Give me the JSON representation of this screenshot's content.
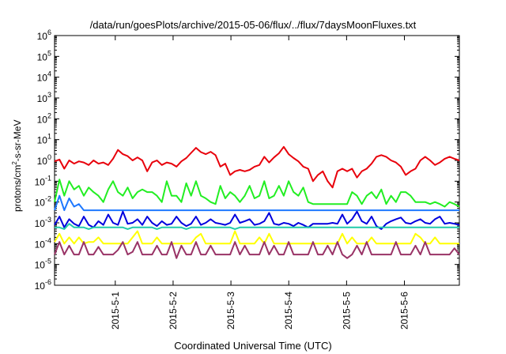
{
  "chart_data": {
    "type": "line",
    "title": "/data/run/goesPlots/archive/2015-05-06/flux/../flux/7daysMoonFluxes.txt",
    "xlabel": "Coordinated Universal Time (UTC)",
    "ylabel_base": "protons/cm",
    "ylabel_sup": "2",
    "ylabel_tail": "-s-sr-MeV",
    "yscale": "log",
    "ylim": [
      1e-06,
      1000000.0
    ],
    "ytick_exponents": [
      -6,
      -5,
      -4,
      -3,
      -2,
      -1,
      0,
      1,
      2,
      3,
      4,
      5,
      6
    ],
    "ytick_base": "10",
    "xlim": [
      -1.05,
      5.95
    ],
    "xticks": [
      {
        "x": 0,
        "label": "2015-5-1"
      },
      {
        "x": 1,
        "label": "2015-5-2"
      },
      {
        "x": 2,
        "label": "2015-5-3"
      },
      {
        "x": 3,
        "label": "2015-5-4"
      },
      {
        "x": 4,
        "label": "2015-5-5"
      },
      {
        "x": 5,
        "label": "2015-5-6"
      }
    ],
    "grid": false,
    "series": [
      {
        "color": "#e8000b",
        "n": 84,
        "values": [
          0.9,
          1.1,
          0.4,
          1.0,
          0.7,
          0.9,
          0.8,
          0.6,
          1.0,
          0.7,
          0.8,
          0.6,
          1.2,
          3.2,
          2.0,
          1.6,
          1.0,
          1.4,
          1.0,
          0.3,
          0.8,
          1.0,
          0.6,
          0.8,
          0.7,
          0.5,
          0.9,
          1.3,
          2.3,
          4.0,
          2.5,
          2.0,
          2.6,
          1.8,
          0.5,
          0.7,
          0.2,
          0.3,
          0.35,
          0.3,
          0.35,
          0.5,
          0.6,
          1.5,
          0.8,
          1.4,
          2.2,
          4.5,
          2.0,
          1.3,
          0.9,
          0.5,
          0.4,
          0.1,
          0.2,
          0.3,
          0.1,
          0.05,
          0.3,
          0.4,
          0.3,
          0.4,
          0.15,
          0.3,
          0.4,
          0.7,
          1.5,
          1.8,
          1.5,
          1.0,
          0.8,
          0.5,
          0.2,
          0.3,
          0.4,
          1.0,
          1.5,
          1.0,
          0.6,
          0.8,
          1.2,
          1.5,
          1.2,
          1.0
        ]
      },
      {
        "color": "#22ee22",
        "n": 84,
        "values": [
          0.01,
          0.12,
          0.02,
          0.1,
          0.04,
          0.06,
          0.02,
          0.05,
          0.03,
          0.02,
          0.01,
          0.04,
          0.1,
          0.03,
          0.02,
          0.05,
          0.015,
          0.03,
          0.04,
          0.03,
          0.03,
          0.02,
          0.01,
          0.1,
          0.02,
          0.02,
          0.01,
          0.08,
          0.02,
          0.1,
          0.02,
          0.015,
          0.01,
          0.008,
          0.06,
          0.015,
          0.03,
          0.02,
          0.01,
          0.02,
          0.06,
          0.015,
          0.02,
          0.1,
          0.015,
          0.02,
          0.06,
          0.02,
          0.1,
          0.03,
          0.02,
          0.05,
          0.01,
          0.008,
          0.008,
          0.008,
          0.008,
          0.008,
          0.008,
          0.008,
          0.008,
          0.03,
          0.02,
          0.008,
          0.02,
          0.03,
          0.015,
          0.04,
          0.008,
          0.02,
          0.01,
          0.03,
          0.03,
          0.02,
          0.01,
          0.01,
          0.01,
          0.008,
          0.01,
          0.008,
          0.006,
          0.01,
          0.008,
          0.006
        ]
      },
      {
        "color": "#1e78ff",
        "n": 84,
        "values": [
          0.004,
          0.02,
          0.004,
          0.015,
          0.006,
          0.008,
          0.004,
          0.004,
          0.004,
          0.004,
          0.004,
          0.004,
          0.004,
          0.004,
          0.004,
          0.004,
          0.004,
          0.004,
          0.004,
          0.004,
          0.004,
          0.004,
          0.004,
          0.004,
          0.004,
          0.004,
          0.004,
          0.004,
          0.004,
          0.004,
          0.004,
          0.004,
          0.004,
          0.004,
          0.004,
          0.004,
          0.004,
          0.004,
          0.004,
          0.004,
          0.004,
          0.004,
          0.004,
          0.004,
          0.004,
          0.004,
          0.004,
          0.004,
          0.004,
          0.004,
          0.004,
          0.004,
          0.004,
          0.004,
          0.004,
          0.004,
          0.004,
          0.004,
          0.004,
          0.004,
          0.004,
          0.004,
          0.004,
          0.004,
          0.004,
          0.004,
          0.004,
          0.004,
          0.004,
          0.004,
          0.004,
          0.004,
          0.004,
          0.004,
          0.004,
          0.004,
          0.004,
          0.004,
          0.004,
          0.004,
          0.004,
          0.004,
          0.004,
          0.004
        ]
      },
      {
        "color": "#0000dd",
        "n": 84,
        "values": [
          0.0008,
          0.002,
          0.0006,
          0.0015,
          0.0009,
          0.0007,
          0.002,
          0.0008,
          0.0006,
          0.0012,
          0.0008,
          0.0025,
          0.001,
          0.0008,
          0.0035,
          0.0009,
          0.001,
          0.0015,
          0.0008,
          0.002,
          0.001,
          0.0007,
          0.0012,
          0.0008,
          0.0009,
          0.002,
          0.001,
          0.0007,
          0.0009,
          0.002,
          0.0008,
          0.001,
          0.0015,
          0.001,
          0.0009,
          0.0008,
          0.001,
          0.0025,
          0.001,
          0.0012,
          0.0015,
          0.0008,
          0.0009,
          0.0012,
          0.003,
          0.0009,
          0.0008,
          0.001,
          0.0009,
          0.0007,
          0.001,
          0.0008,
          0.0006,
          0.0009,
          0.0009,
          0.0009,
          0.0009,
          0.001,
          0.0009,
          0.0025,
          0.0009,
          0.0015,
          0.0035,
          0.0012,
          0.0009,
          0.002,
          0.0007,
          0.0005,
          0.0009,
          0.0012,
          0.0015,
          0.0018,
          0.001,
          0.0009,
          0.0012,
          0.0015,
          0.001,
          0.0009,
          0.0015,
          0.002,
          0.0009,
          0.001,
          0.0009,
          0.0008
        ]
      },
      {
        "color": "#22ccaa",
        "n": 84,
        "values": [
          0.0006,
          0.0006,
          0.0005,
          0.0009,
          0.0006,
          0.0006,
          0.0006,
          0.0005,
          0.0006,
          0.0006,
          0.0006,
          0.0006,
          0.0006,
          0.0006,
          0.0006,
          0.0005,
          0.0006,
          0.0006,
          0.0006,
          0.0006,
          0.0006,
          0.0005,
          0.0006,
          0.0006,
          0.0006,
          0.0006,
          0.0006,
          0.0005,
          0.0006,
          0.0006,
          0.0006,
          0.0006,
          0.0006,
          0.0006,
          0.0006,
          0.0006,
          0.0006,
          0.0005,
          0.0006,
          0.0006,
          0.0006,
          0.0006,
          0.0006,
          0.0006,
          0.0006,
          0.0006,
          0.0006,
          0.0006,
          0.0006,
          0.0006,
          0.0006,
          0.0006,
          0.0006,
          0.0006,
          0.0006,
          0.0006,
          0.0006,
          0.0006,
          0.0006,
          0.0006,
          0.0006,
          0.0006,
          0.0006,
          0.0006,
          0.0006,
          0.0006,
          0.0006,
          0.0006,
          0.0006,
          0.0006,
          0.0006,
          0.0006,
          0.0006,
          0.0006,
          0.0006,
          0.0006,
          0.0006,
          0.0006,
          0.0006,
          0.0006,
          0.0006,
          0.0006,
          0.0006,
          0.0006
        ]
      },
      {
        "color": "#ffff00",
        "n": 84,
        "values": [
          0.00012,
          0.0003,
          0.0001,
          0.0002,
          0.0001,
          0.0002,
          0.0001,
          0.00012,
          0.00012,
          0.0002,
          0.0001,
          0.0001,
          0.0001,
          0.0001,
          0.0001,
          0.0001,
          0.0002,
          0.0004,
          0.0001,
          0.0001,
          0.0001,
          0.0002,
          0.0001,
          0.0001,
          0.0001,
          0.0001,
          0.0001,
          0.0001,
          0.0001,
          0.0002,
          0.0003,
          0.0001,
          0.0001,
          0.0001,
          0.0001,
          0.0001,
          0.0001,
          0.0004,
          0.0001,
          0.0001,
          0.0001,
          0.0001,
          0.0002,
          0.0001,
          0.0003,
          0.0001,
          0.0001,
          0.0001,
          0.0001,
          0.0001,
          0.0001,
          0.0001,
          0.0001,
          0.0001,
          0.0001,
          0.0001,
          0.0001,
          0.0001,
          0.0001,
          0.0003,
          0.0001,
          0.0002,
          0.0001,
          0.0001,
          0.0001,
          0.0002,
          0.0001,
          0.0001,
          0.0001,
          0.0001,
          0.0001,
          0.0001,
          0.0001,
          0.0001,
          0.0003,
          0.0002,
          0.0001,
          0.0001,
          0.0002,
          0.0001,
          0.0001,
          0.0001,
          0.0001,
          0.0001
        ]
      },
      {
        "color": "#993366",
        "n": 84,
        "values": [
          3e-05,
          0.00012,
          3e-05,
          8e-05,
          3e-05,
          3e-05,
          0.00012,
          3e-05,
          3e-05,
          7e-05,
          3e-05,
          3e-05,
          3e-05,
          5e-05,
          0.00012,
          3e-05,
          4e-05,
          0.00012,
          3e-05,
          3e-05,
          3e-05,
          8e-05,
          3e-05,
          3e-05,
          0.00012,
          2e-05,
          8e-05,
          3e-05,
          3e-05,
          0.00012,
          3e-05,
          3e-05,
          8e-05,
          3e-05,
          3e-05,
          3e-05,
          3e-05,
          0.00012,
          3e-05,
          8e-05,
          3e-05,
          3e-05,
          3e-05,
          0.00012,
          3e-05,
          8e-05,
          3e-05,
          3e-05,
          0.00012,
          3e-05,
          3e-05,
          3e-05,
          3e-05,
          0.00012,
          3e-05,
          3e-05,
          8e-05,
          3e-05,
          0.00012,
          3e-05,
          2e-05,
          3e-05,
          8e-05,
          3e-05,
          0.00012,
          3e-05,
          3e-05,
          3e-05,
          3e-05,
          3e-05,
          0.00012,
          3e-05,
          3e-05,
          3e-05,
          8e-05,
          3e-05,
          0.00012,
          3e-05,
          3e-05,
          3e-05,
          3e-05,
          3e-05,
          6e-05,
          3e-05
        ]
      }
    ]
  }
}
